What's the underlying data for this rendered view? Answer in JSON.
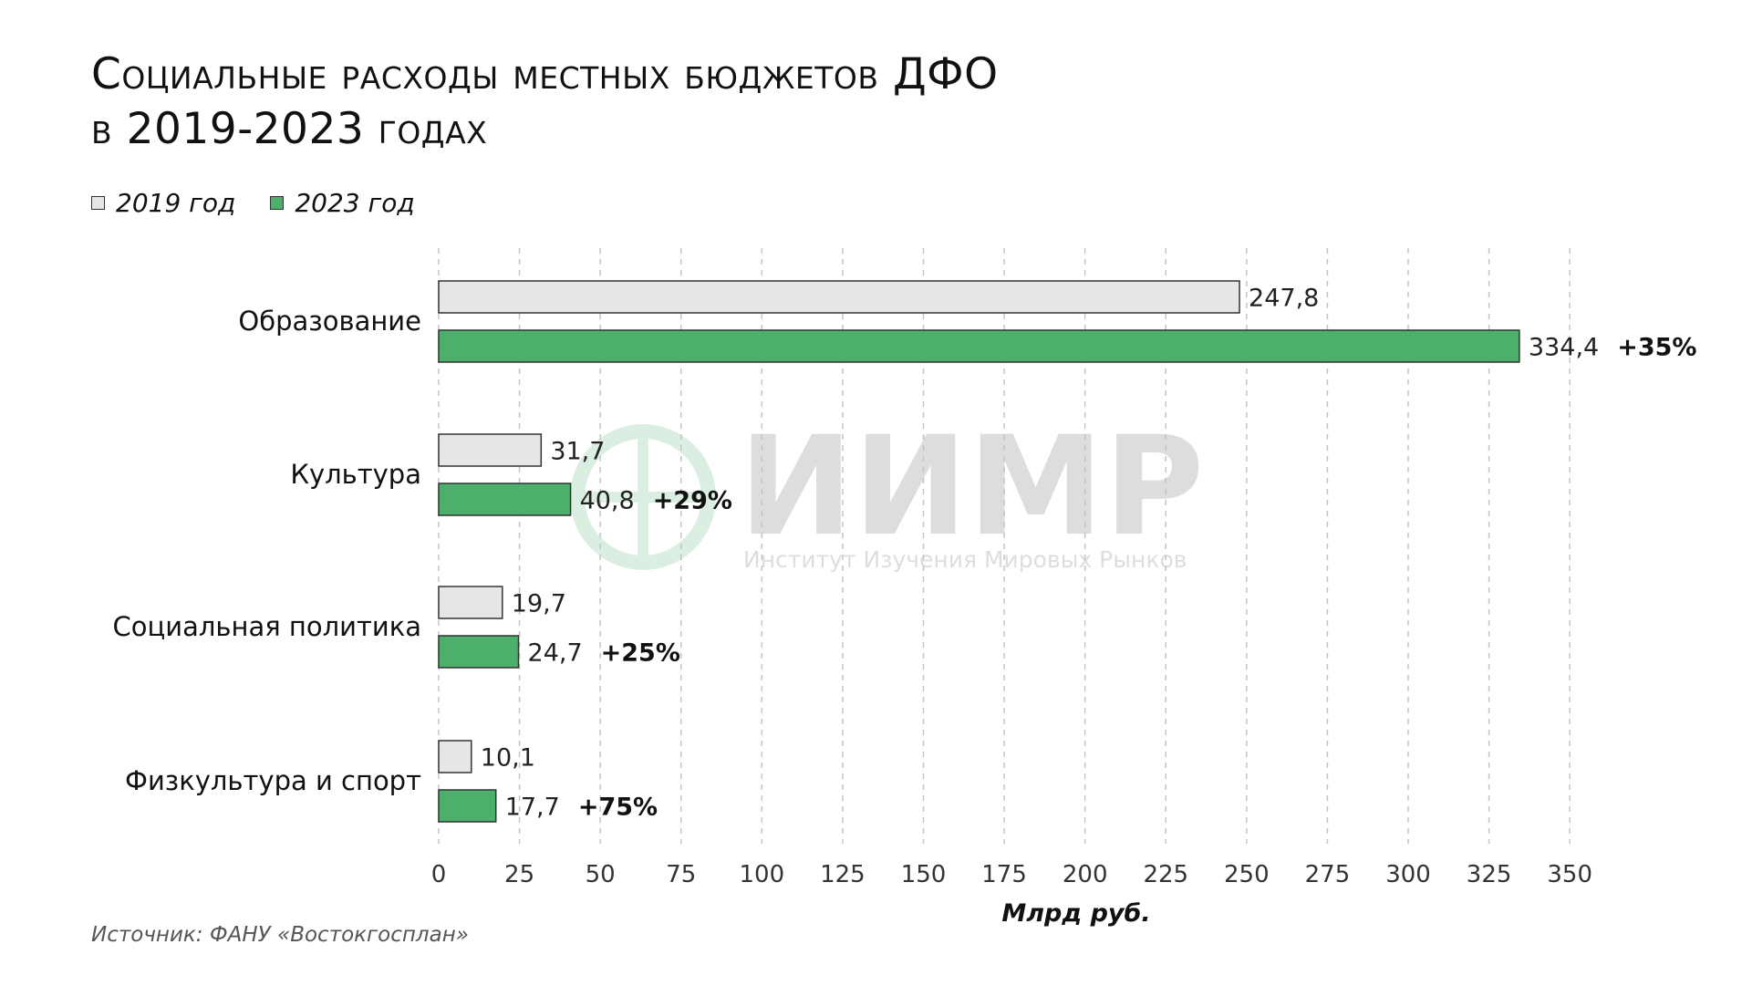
{
  "title_lines": [
    "Социальные расходы местных бюджетов ДФО",
    "в 2019-2023 годах"
  ],
  "legend": [
    {
      "label": "2019 год",
      "color": "#e6e6e6"
    },
    {
      "label": "2023 год",
      "color": "#4caf6b"
    }
  ],
  "source": "Источник: ФАНУ «Востокгосплан»",
  "watermark": {
    "logo_text": "ИИМР",
    "subtitle": "Институт Изучения Мировых Рынков"
  },
  "chart_data": {
    "type": "bar",
    "orientation": "horizontal",
    "categories": [
      "Образование",
      "Культура",
      "Социальная политика",
      "Физкультура и спорт"
    ],
    "series": [
      {
        "name": "2019 год",
        "values": [
          247.8,
          31.7,
          19.7,
          10.1
        ],
        "labels": [
          "247,8",
          "31,7",
          "19,7",
          "10,1"
        ],
        "color": "#e6e6e6"
      },
      {
        "name": "2023 год",
        "values": [
          334.4,
          40.8,
          24.7,
          17.7
        ],
        "labels": [
          "334,4",
          "40,8",
          "24,7",
          "17,7"
        ],
        "color": "#4caf6b"
      }
    ],
    "growth_labels": [
      "+35%",
      "+29%",
      "+25%",
      "+75%"
    ],
    "xlabel": "Млрд руб.",
    "xlim": [
      0,
      350
    ],
    "xticks": [
      0,
      25,
      50,
      75,
      100,
      125,
      150,
      175,
      200,
      225,
      250,
      275,
      300,
      325,
      350
    ],
    "grid": "vertical dashed",
    "legend_position": "top-left"
  }
}
